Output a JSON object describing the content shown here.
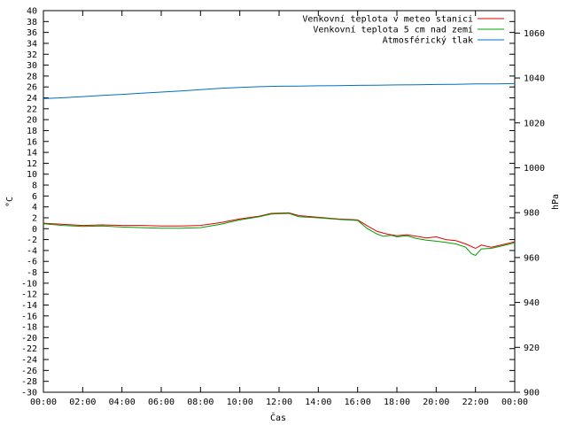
{
  "chart_data": {
    "type": "line",
    "xlabel": "Čas",
    "ylabel": "°C",
    "y2label": "hPa",
    "x_ticks": [
      "00:00",
      "02:00",
      "04:00",
      "06:00",
      "08:00",
      "10:00",
      "12:00",
      "14:00",
      "16:00",
      "18:00",
      "20:00",
      "22:00",
      "00:00"
    ],
    "xlim": [
      0,
      24
    ],
    "ylim": [
      -30,
      40
    ],
    "y_tick_step": 2,
    "y2lim": [
      900,
      1070
    ],
    "y2_ticks": [
      900,
      920,
      940,
      960,
      980,
      1000,
      1020,
      1040,
      1060
    ],
    "grid": false,
    "legend_position": "top-right",
    "series": [
      {
        "name": "Venkovní teplota v meteo stanici",
        "color": "#e00000",
        "axis": "left",
        "points": [
          [
            0,
            1.0
          ],
          [
            1,
            0.8
          ],
          [
            2,
            0.6
          ],
          [
            3,
            0.7
          ],
          [
            4,
            0.6
          ],
          [
            5,
            0.6
          ],
          [
            6,
            0.5
          ],
          [
            7,
            0.5
          ],
          [
            8,
            0.6
          ],
          [
            9,
            1.1
          ],
          [
            10,
            1.8
          ],
          [
            11,
            2.3
          ],
          [
            11.6,
            2.8
          ],
          [
            12.5,
            2.9
          ],
          [
            13,
            2.4
          ],
          [
            14,
            2.1
          ],
          [
            15,
            1.8
          ],
          [
            16,
            1.6
          ],
          [
            16.5,
            0.5
          ],
          [
            17,
            -0.5
          ],
          [
            17.5,
            -1.0
          ],
          [
            18,
            -1.3
          ],
          [
            18.5,
            -1.1
          ],
          [
            19,
            -1.4
          ],
          [
            19.5,
            -1.7
          ],
          [
            20,
            -1.5
          ],
          [
            20.5,
            -2.0
          ],
          [
            21,
            -2.2
          ],
          [
            21.5,
            -2.8
          ],
          [
            22,
            -3.6
          ],
          [
            22.3,
            -3.0
          ],
          [
            22.8,
            -3.4
          ],
          [
            23.3,
            -3.0
          ],
          [
            24,
            -2.4
          ]
        ]
      },
      {
        "name": "Venkovní teplota 5 cm nad zemí",
        "color": "#00a000",
        "axis": "left",
        "points": [
          [
            0,
            0.9
          ],
          [
            1,
            0.6
          ],
          [
            2,
            0.4
          ],
          [
            3,
            0.5
          ],
          [
            4,
            0.3
          ],
          [
            5,
            0.2
          ],
          [
            6,
            0.1
          ],
          [
            7,
            0.1
          ],
          [
            8,
            0.2
          ],
          [
            9,
            0.8
          ],
          [
            10,
            1.6
          ],
          [
            11,
            2.2
          ],
          [
            11.6,
            2.7
          ],
          [
            12.5,
            2.8
          ],
          [
            13,
            2.2
          ],
          [
            14,
            2.0
          ],
          [
            15,
            1.7
          ],
          [
            16,
            1.5
          ],
          [
            16.5,
            0.0
          ],
          [
            17,
            -1.0
          ],
          [
            17.3,
            -1.4
          ],
          [
            17.7,
            -1.2
          ],
          [
            18,
            -1.5
          ],
          [
            18.5,
            -1.3
          ],
          [
            19,
            -1.8
          ],
          [
            19.5,
            -2.1
          ],
          [
            20,
            -2.3
          ],
          [
            20.5,
            -2.5
          ],
          [
            21,
            -2.8
          ],
          [
            21.5,
            -3.4
          ],
          [
            21.8,
            -4.6
          ],
          [
            22,
            -4.9
          ],
          [
            22.3,
            -3.7
          ],
          [
            22.8,
            -3.6
          ],
          [
            23.3,
            -3.2
          ],
          [
            24,
            -2.6
          ]
        ]
      },
      {
        "name": "Atmosférický tlak",
        "color": "#0070c0",
        "axis": "right",
        "points": [
          [
            0,
            1030.8
          ],
          [
            1,
            1031.2
          ],
          [
            2,
            1031.7
          ],
          [
            3,
            1032.2
          ],
          [
            4,
            1032.7
          ],
          [
            5,
            1033.2
          ],
          [
            6,
            1033.7
          ],
          [
            7,
            1034.2
          ],
          [
            8,
            1034.8
          ],
          [
            9,
            1035.4
          ],
          [
            10,
            1035.8
          ],
          [
            11,
            1036.1
          ],
          [
            12,
            1036.3
          ],
          [
            13,
            1036.4
          ],
          [
            14,
            1036.5
          ],
          [
            15,
            1036.6
          ],
          [
            16,
            1036.7
          ],
          [
            17,
            1036.8
          ],
          [
            18,
            1036.9
          ],
          [
            19,
            1037.0
          ],
          [
            20,
            1037.1
          ],
          [
            21,
            1037.2
          ],
          [
            22,
            1037.4
          ],
          [
            23,
            1037.4
          ],
          [
            24,
            1037.5
          ]
        ]
      }
    ]
  }
}
